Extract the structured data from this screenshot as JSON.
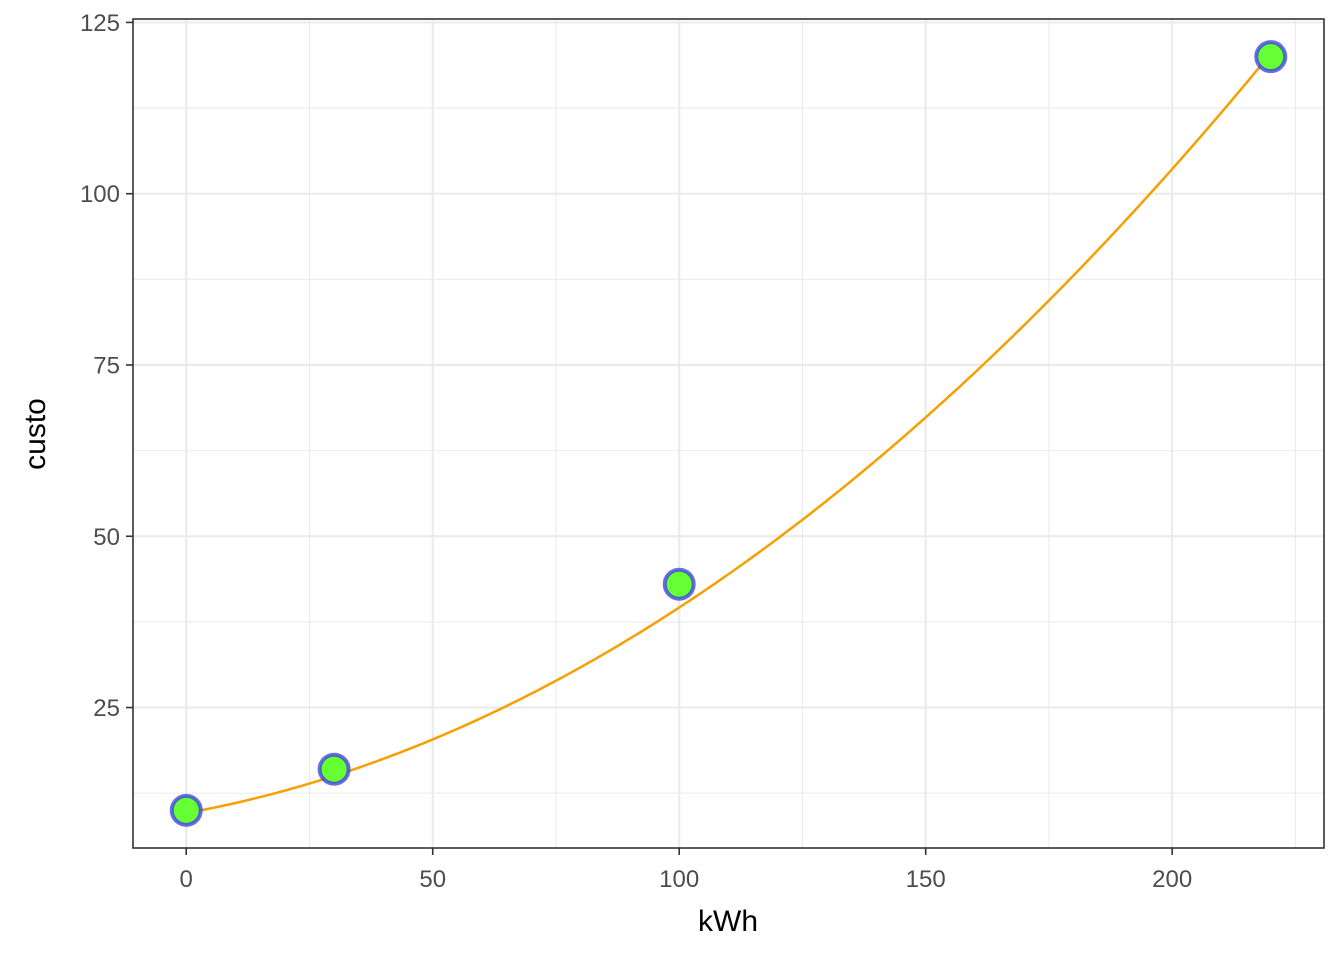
{
  "chart_data": {
    "type": "scatter",
    "title": "",
    "xlabel": "kWh",
    "ylabel": "custo",
    "xlim": [
      -10.8,
      230.8
    ],
    "ylim": [
      4.5,
      125.5
    ],
    "x_ticks": [
      0,
      50,
      100,
      150,
      200
    ],
    "x_tick_labels": [
      "0",
      "50",
      "100",
      "150",
      "200"
    ],
    "y_ticks": [
      25,
      50,
      75,
      100,
      125
    ],
    "y_tick_labels": [
      "25",
      "50",
      "75",
      "100",
      "125"
    ],
    "grid": true,
    "points": [
      {
        "x": 0,
        "y": 10
      },
      {
        "x": 30,
        "y": 16
      },
      {
        "x": 100,
        "y": 43
      },
      {
        "x": 220,
        "y": 120
      }
    ],
    "curve": {
      "type": "quadratic",
      "x": [
        0,
        220
      ],
      "coefficients": {
        "a": 0.0017,
        "b": 0.13,
        "c": 9.6
      }
    },
    "colors": {
      "point_fill": "#66ff33",
      "point_outline": "#3a3ae6",
      "curve": "#f5a000",
      "grid": "#ebebeb",
      "panel_border": "#333333"
    }
  }
}
